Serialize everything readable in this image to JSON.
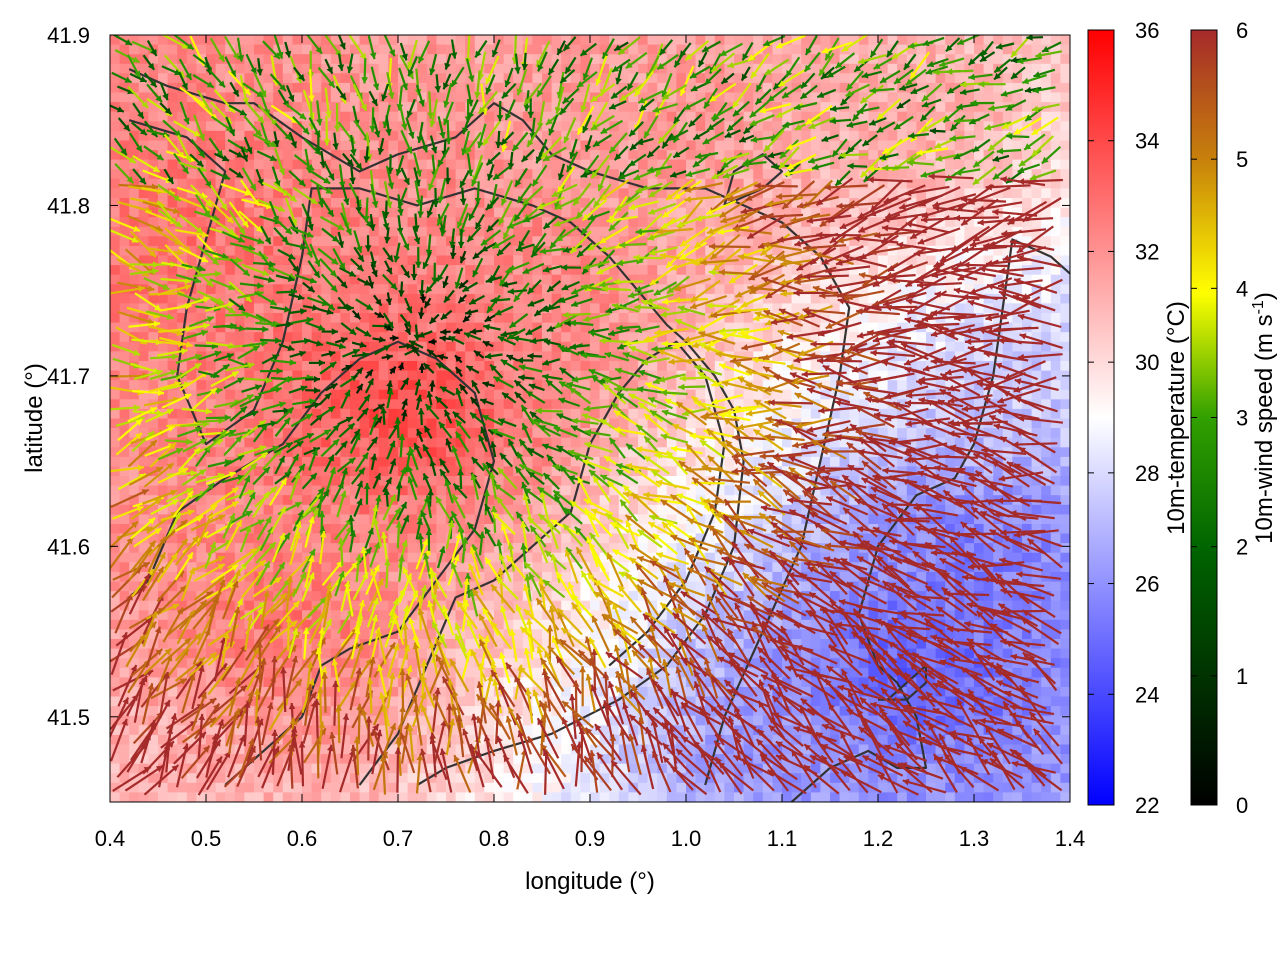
{
  "chart_data": {
    "type": "heatmap",
    "subtype": "temperature field with colored wind vectors and coastline contours",
    "xlabel": "longitude (°)",
    "ylabel": "latitude (°)",
    "xlim": [
      0.4,
      1.4
    ],
    "ylim": [
      41.45,
      41.9
    ],
    "x_ticks": [
      "0.4",
      "0.5",
      "0.6",
      "0.7",
      "0.8",
      "0.9",
      "1.0",
      "1.1",
      "1.2",
      "1.3",
      "1.4"
    ],
    "y_ticks": [
      "41.5",
      "41.6",
      "41.7",
      "41.8",
      "41.9"
    ],
    "grid": false,
    "colorbars": [
      {
        "label": "10m-temperature (°C)",
        "range": [
          22,
          36
        ],
        "ticks": [
          "22",
          "24",
          "26",
          "28",
          "30",
          "32",
          "34",
          "36"
        ],
        "colors": [
          "#0000ff",
          "#ffffff",
          "#ff0000"
        ]
      },
      {
        "label": "10m-wind speed (m s",
        "label_superscript": "-1",
        "label_suffix": ")",
        "range": [
          0,
          6
        ],
        "ticks": [
          "0",
          "1",
          "2",
          "3",
          "4",
          "5",
          "6"
        ],
        "colors": [
          "#000000",
          "#006400",
          "#32a000",
          "#ffff00",
          "#c8820a",
          "#a52a2a"
        ]
      }
    ],
    "temperature_hotspots": [
      {
        "lon": 0.72,
        "lat": 41.68,
        "temp": 34.5
      },
      {
        "lon": 0.48,
        "lat": 41.78,
        "temp": 33
      },
      {
        "lon": 0.58,
        "lat": 41.55,
        "temp": 33
      },
      {
        "lon": 0.85,
        "lat": 41.75,
        "temp": 32.5
      },
      {
        "lon": 1.0,
        "lat": 41.85,
        "temp": 32
      },
      {
        "lon": 1.22,
        "lat": 41.85,
        "temp": 31.5
      },
      {
        "lon": 1.23,
        "lat": 41.53,
        "temp": 24
      },
      {
        "lon": 1.3,
        "lat": 41.6,
        "temp": 25
      },
      {
        "lon": 1.35,
        "lat": 41.7,
        "temp": 27.5
      },
      {
        "lon": 0.42,
        "lat": 41.48,
        "temp": 31
      },
      {
        "lon": 1.1,
        "lat": 41.48,
        "temp": 26
      }
    ],
    "wind_convergence": {
      "lon": 0.72,
      "lat": 41.72
    },
    "contours": [
      [
        [
          0.42,
          41.88
        ],
        [
          0.46,
          41.87
        ],
        [
          0.52,
          41.86
        ],
        [
          0.55,
          41.86
        ],
        [
          0.6,
          41.84
        ],
        [
          0.66,
          41.82
        ],
        [
          0.7,
          41.83
        ],
        [
          0.76,
          41.84
        ],
        [
          0.8,
          41.86
        ],
        [
          0.83,
          41.85
        ],
        [
          0.86,
          41.83
        ],
        [
          0.9,
          41.82
        ],
        [
          0.96,
          41.81
        ],
        [
          1.02,
          41.81
        ],
        [
          1.06,
          41.8
        ],
        [
          1.1,
          41.79
        ],
        [
          1.14,
          41.77
        ],
        [
          1.17,
          41.74
        ],
        [
          1.16,
          41.7
        ],
        [
          1.14,
          41.65
        ],
        [
          1.12,
          41.6
        ],
        [
          1.08,
          41.55
        ],
        [
          1.04,
          41.5
        ],
        [
          1.02,
          41.46
        ]
      ],
      [
        [
          0.42,
          41.85
        ],
        [
          0.48,
          41.84
        ],
        [
          0.52,
          41.82
        ],
        [
          0.5,
          41.78
        ],
        [
          0.48,
          41.74
        ],
        [
          0.47,
          41.7
        ],
        [
          0.5,
          41.66
        ],
        [
          0.55,
          41.68
        ],
        [
          0.58,
          41.72
        ],
        [
          0.6,
          41.77
        ],
        [
          0.61,
          41.81
        ],
        [
          0.66,
          41.81
        ],
        [
          0.72,
          41.8
        ],
        [
          0.78,
          41.81
        ],
        [
          0.84,
          41.8
        ],
        [
          0.88,
          41.79
        ],
        [
          0.92,
          41.77
        ],
        [
          0.95,
          41.75
        ],
        [
          0.98,
          41.73
        ],
        [
          1.0,
          41.72
        ],
        [
          1.03,
          41.7
        ],
        [
          1.05,
          41.68
        ],
        [
          1.06,
          41.65
        ],
        [
          1.05,
          41.6
        ],
        [
          1.02,
          41.56
        ],
        [
          0.98,
          41.53
        ],
        [
          0.93,
          41.51
        ],
        [
          0.86,
          41.49
        ],
        [
          0.8,
          41.48
        ],
        [
          0.75,
          41.47
        ],
        [
          0.72,
          41.46
        ]
      ],
      [
        [
          0.42,
          41.57
        ],
        [
          0.44,
          41.58
        ],
        [
          0.47,
          41.62
        ],
        [
          0.52,
          41.64
        ],
        [
          0.58,
          41.66
        ],
        [
          0.62,
          41.69
        ],
        [
          0.66,
          41.71
        ],
        [
          0.7,
          41.72
        ],
        [
          0.74,
          41.71
        ],
        [
          0.78,
          41.69
        ],
        [
          0.8,
          41.65
        ],
        [
          0.78,
          41.61
        ],
        [
          0.74,
          41.58
        ],
        [
          0.7,
          41.55
        ],
        [
          0.65,
          41.54
        ],
        [
          0.62,
          41.53
        ],
        [
          0.6,
          41.5
        ],
        [
          0.56,
          41.48
        ],
        [
          0.52,
          41.46
        ]
      ],
      [
        [
          0.66,
          41.46
        ],
        [
          0.7,
          41.49
        ],
        [
          0.73,
          41.53
        ],
        [
          0.76,
          41.57
        ],
        [
          0.8,
          41.58
        ],
        [
          0.84,
          41.6
        ],
        [
          0.88,
          41.62
        ],
        [
          0.9,
          41.66
        ],
        [
          0.93,
          41.69
        ],
        [
          0.96,
          41.71
        ],
        [
          0.99,
          41.72
        ],
        [
          1.02,
          41.7
        ],
        [
          1.04,
          41.66
        ],
        [
          1.03,
          41.62
        ],
        [
          1.0,
          41.58
        ],
        [
          0.96,
          41.55
        ],
        [
          0.92,
          41.53
        ]
      ],
      [
        [
          1.11,
          41.45
        ],
        [
          1.15,
          41.47
        ],
        [
          1.19,
          41.48
        ],
        [
          1.22,
          41.47
        ],
        [
          1.25,
          41.47
        ],
        [
          1.24,
          41.5
        ],
        [
          1.22,
          41.52
        ],
        [
          1.2,
          41.53
        ],
        [
          1.18,
          41.56
        ],
        [
          1.2,
          41.6
        ],
        [
          1.24,
          41.63
        ],
        [
          1.28,
          41.64
        ],
        [
          1.3,
          41.66
        ],
        [
          1.32,
          41.7
        ],
        [
          1.33,
          41.74
        ],
        [
          1.34,
          41.78
        ],
        [
          1.38,
          41.77
        ],
        [
          1.4,
          41.76
        ]
      ],
      [
        [
          1.2,
          41.51
        ],
        [
          1.23,
          41.51
        ],
        [
          1.25,
          41.52
        ],
        [
          1.25,
          41.53
        ],
        [
          1.23,
          41.52
        ],
        [
          1.21,
          41.51
        ],
        [
          1.2,
          41.51
        ]
      ],
      [
        [
          1.04,
          41.8
        ],
        [
          1.08,
          41.81
        ],
        [
          1.1,
          41.82
        ],
        [
          1.08,
          41.83
        ],
        [
          1.05,
          41.82
        ],
        [
          1.04,
          41.8
        ]
      ]
    ]
  }
}
